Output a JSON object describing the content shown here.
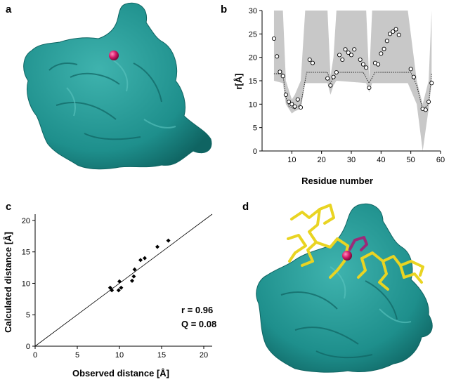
{
  "panels": {
    "a": {
      "label": "a"
    },
    "b": {
      "label": "b"
    },
    "c": {
      "label": "c"
    },
    "d": {
      "label": "d"
    }
  },
  "colors": {
    "surface": "#1e8f8c",
    "surface_dark": "#0f6462",
    "sphere": "#d61a6a",
    "ligand": "#e9d422",
    "ligand_highlight": "#9b2a79",
    "band": "#c8c8c8"
  },
  "chart_data": [
    {
      "panel": "b",
      "type": "scatter",
      "xlabel": "Residue number",
      "ylabel": "r[Å]",
      "xlim": [
        0,
        60
      ],
      "ylim": [
        0,
        30
      ],
      "xticks": [
        "10",
        "20",
        "30",
        "40",
        "50",
        "60"
      ],
      "yticks": [
        "0",
        "5",
        "10",
        "15",
        "20",
        "25",
        "30"
      ],
      "grid": false,
      "points": [
        {
          "x": 4,
          "y": 24.0
        },
        {
          "x": 5,
          "y": 20.2
        },
        {
          "x": 6,
          "y": 16.9
        },
        {
          "x": 7,
          "y": 16.0
        },
        {
          "x": 8,
          "y": 12.0
        },
        {
          "x": 9,
          "y": 10.5
        },
        {
          "x": 10,
          "y": 10.0
        },
        {
          "x": 11,
          "y": 9.5
        },
        {
          "x": 12,
          "y": 11.0
        },
        {
          "x": 13,
          "y": 9.3
        },
        {
          "x": 16,
          "y": 19.5
        },
        {
          "x": 17,
          "y": 18.8
        },
        {
          "x": 22,
          "y": 15.5
        },
        {
          "x": 23,
          "y": 14.0
        },
        {
          "x": 24,
          "y": 15.8
        },
        {
          "x": 25,
          "y": 16.8
        },
        {
          "x": 26,
          "y": 20.5
        },
        {
          "x": 27,
          "y": 19.5
        },
        {
          "x": 28,
          "y": 21.7
        },
        {
          "x": 29,
          "y": 21.0
        },
        {
          "x": 30,
          "y": 20.5
        },
        {
          "x": 31,
          "y": 21.7
        },
        {
          "x": 33,
          "y": 19.5
        },
        {
          "x": 34,
          "y": 18.5
        },
        {
          "x": 35,
          "y": 17.8
        },
        {
          "x": 36,
          "y": 13.5
        },
        {
          "x": 38,
          "y": 18.8
        },
        {
          "x": 39,
          "y": 18.5
        },
        {
          "x": 40,
          "y": 20.8
        },
        {
          "x": 41,
          "y": 21.8
        },
        {
          "x": 42,
          "y": 23.5
        },
        {
          "x": 43,
          "y": 25.0
        },
        {
          "x": 44,
          "y": 25.5
        },
        {
          "x": 45,
          "y": 26.0
        },
        {
          "x": 46,
          "y": 24.8
        },
        {
          "x": 50,
          "y": 17.5
        },
        {
          "x": 51,
          "y": 15.8
        },
        {
          "x": 54,
          "y": 9.0
        },
        {
          "x": 55,
          "y": 8.8
        },
        {
          "x": 56,
          "y": 10.5
        },
        {
          "x": 57,
          "y": 14.5
        }
      ],
      "dotted_line": [
        [
          4,
          16.5
        ],
        [
          7,
          16.5
        ],
        [
          8,
          11.5
        ],
        [
          9,
          9.5
        ],
        [
          11,
          9.0
        ],
        [
          13,
          10.0
        ],
        [
          15,
          16.8
        ],
        [
          22,
          16.8
        ],
        [
          23,
          14.5
        ],
        [
          25,
          16.8
        ],
        [
          34,
          16.8
        ],
        [
          36,
          14.5
        ],
        [
          38,
          16.8
        ],
        [
          50,
          16.8
        ],
        [
          52,
          14.0
        ],
        [
          54,
          8.8
        ],
        [
          56,
          10.0
        ],
        [
          57,
          16.5
        ]
      ],
      "band": [
        [
          4,
          15.0,
          30.0
        ],
        [
          7,
          14.5,
          30.0
        ],
        [
          8,
          10.0,
          15.0
        ],
        [
          10,
          8.0,
          11.0
        ],
        [
          11,
          8.5,
          12.0
        ],
        [
          13,
          9.0,
          15.0
        ],
        [
          14.5,
          14.5,
          30.0
        ],
        [
          22,
          14.5,
          30.0
        ],
        [
          23,
          12.0,
          16.0
        ],
        [
          24,
          14.0,
          20.0
        ],
        [
          25,
          15.0,
          30.0
        ],
        [
          35,
          14.5,
          30.0
        ],
        [
          36,
          12.5,
          15.5
        ],
        [
          37,
          14.5,
          30.0
        ],
        [
          49,
          14.5,
          30.0
        ],
        [
          52,
          10.0,
          15.0
        ],
        [
          54,
          0.0,
          10.0
        ],
        [
          56,
          9.0,
          15.0
        ],
        [
          57,
          14.5,
          30.0
        ]
      ]
    },
    {
      "panel": "c",
      "type": "scatter",
      "xlabel": "Observed distance [Å]",
      "ylabel": "Calculated distance [Å]",
      "xlim": [
        0,
        21
      ],
      "ylim": [
        0,
        21
      ],
      "xticks": [
        "0",
        "5",
        "10",
        "15",
        "20"
      ],
      "yticks": [
        "0",
        "5",
        "10",
        "15",
        "20"
      ],
      "grid": false,
      "points": [
        {
          "x": 8.9,
          "y": 9.3
        },
        {
          "x": 9.1,
          "y": 8.9
        },
        {
          "x": 9.9,
          "y": 8.9
        },
        {
          "x": 10.0,
          "y": 10.3
        },
        {
          "x": 10.2,
          "y": 9.3
        },
        {
          "x": 11.5,
          "y": 10.4
        },
        {
          "x": 11.7,
          "y": 11.1
        },
        {
          "x": 11.8,
          "y": 12.2
        },
        {
          "x": 12.5,
          "y": 13.7
        },
        {
          "x": 13.0,
          "y": 14.0
        },
        {
          "x": 14.5,
          "y": 15.8
        },
        {
          "x": 15.8,
          "y": 16.8
        }
      ],
      "diagonal": [
        [
          0,
          0
        ],
        [
          21,
          21
        ]
      ],
      "annotations": [
        "r = 0.96",
        "Q = 0.08"
      ]
    }
  ]
}
